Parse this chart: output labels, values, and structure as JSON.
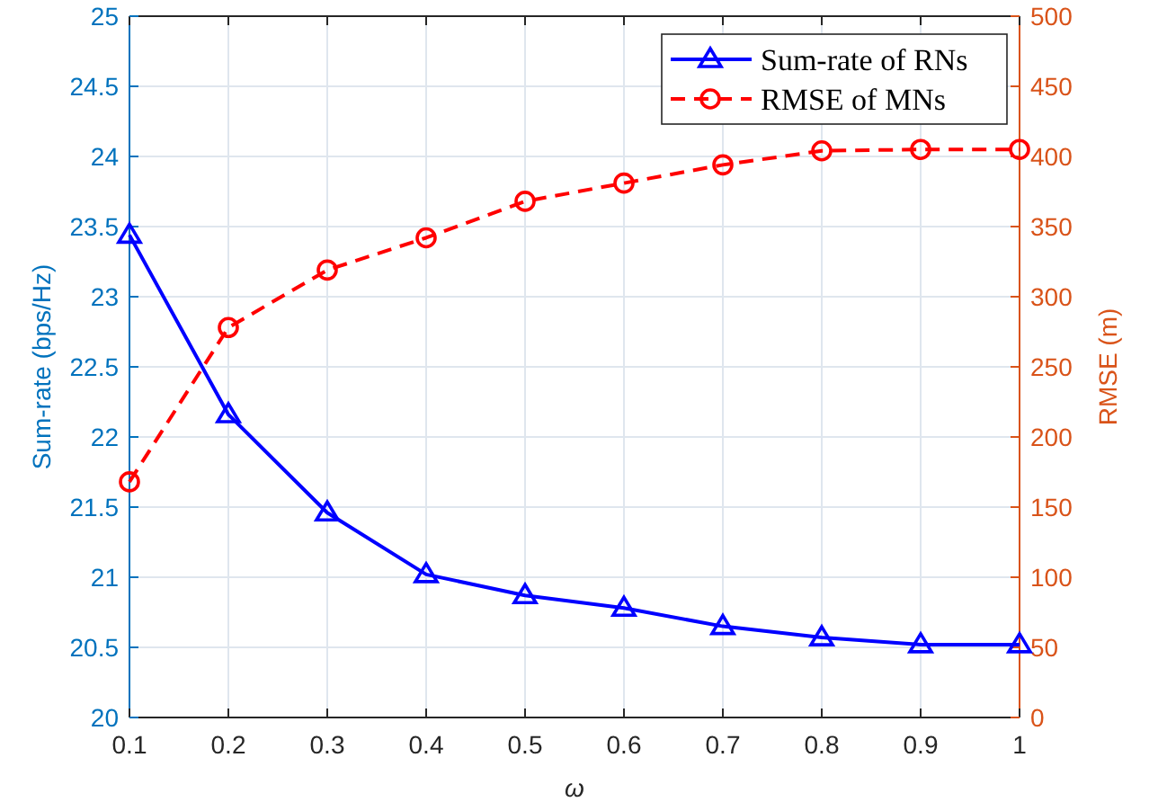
{
  "chart_data": {
    "type": "line",
    "xlabel": "ω",
    "ylabel": "Sum-rate (bps/Hz)",
    "y2label": "RMSE (m)",
    "x": [
      0.1,
      0.2,
      0.3,
      0.4,
      0.5,
      0.6,
      0.7,
      0.8,
      0.9,
      1
    ],
    "series": [
      {
        "name": "Sum-rate of RNs",
        "color": "#0000ff",
        "marker": "triangle",
        "line_style": "solid",
        "values": [
          23.44,
          22.16,
          21.46,
          21.02,
          20.87,
          20.78,
          20.65,
          20.57,
          20.52,
          20.52
        ]
      },
      {
        "name": "RMSE of MNs",
        "color": "#ff0000",
        "marker": "circle",
        "line_style": "dashed",
        "axis": "y2",
        "values": [
          168,
          278,
          319,
          342,
          368,
          381,
          394,
          404,
          405,
          405
        ]
      }
    ],
    "xlim": [
      0.1,
      1
    ],
    "xticks": [
      0.1,
      0.2,
      0.3,
      0.4,
      0.5,
      0.6,
      0.7,
      0.8,
      0.9,
      1
    ],
    "ylim": [
      20,
      25
    ],
    "yticks": [
      20,
      20.5,
      21,
      21.5,
      22,
      22.5,
      23,
      23.5,
      24,
      24.5,
      25
    ],
    "y2lim": [
      0,
      500
    ],
    "y2ticks": [
      0,
      50,
      100,
      150,
      200,
      250,
      300,
      350,
      400,
      450,
      500
    ],
    "grid": true,
    "legend": "top right"
  }
}
